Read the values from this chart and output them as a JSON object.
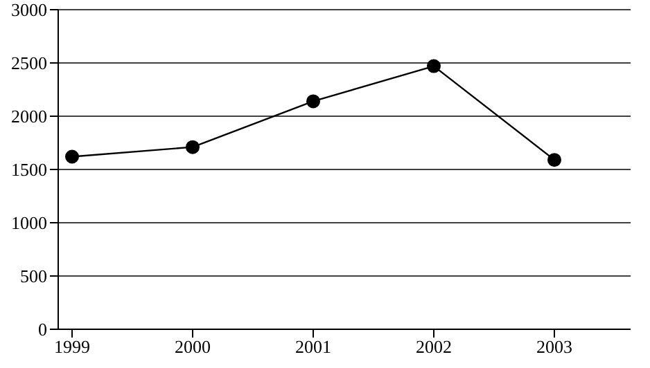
{
  "chart_data": {
    "type": "line",
    "categories": [
      "1999",
      "2000",
      "2001",
      "2002",
      "2003"
    ],
    "series": [
      {
        "color": "#000000",
        "values": [
          1620,
          1710,
          2140,
          2470,
          1590
        ]
      }
    ],
    "ylim": [
      0,
      3000
    ],
    "yticks": [
      0,
      500,
      1000,
      1500,
      2000,
      2500,
      3000
    ],
    "grid": "y",
    "marker": "circle",
    "line_style": "solid"
  }
}
